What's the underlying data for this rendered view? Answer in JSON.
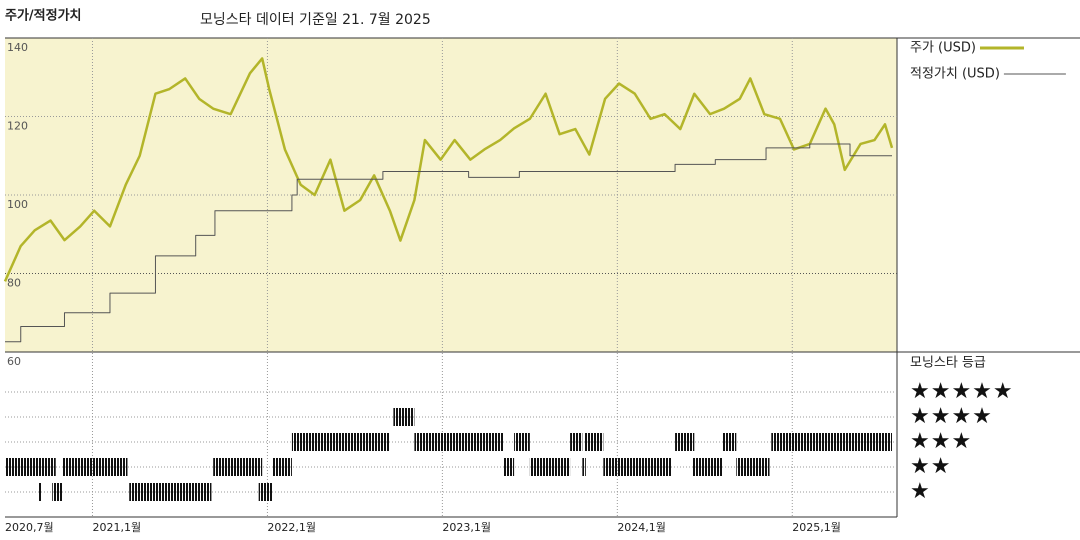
{
  "chart_data": {
    "type": "line",
    "title": "주가/적정가치",
    "subtitle": "모닝스타 데이터 기준일 21. 7월 2025",
    "xlim": [
      2020.5,
      2025.57
    ],
    "xticks": [
      {
        "value": 2020.5,
        "label": "2020,7월"
      },
      {
        "value": 2021.0,
        "label": "2021,1월"
      },
      {
        "value": 2022.0,
        "label": "2022,1월"
      },
      {
        "value": 2023.0,
        "label": "2023,1월"
      },
      {
        "value": 2024.0,
        "label": "2024,1월"
      },
      {
        "value": 2025.0,
        "label": "2025,1월"
      }
    ],
    "ylim": [
      60,
      140
    ],
    "yticks": [
      60,
      80,
      100,
      120,
      140
    ],
    "grid": true,
    "series": [
      {
        "name": "주가 (USD)",
        "color": "#b3b52a",
        "step": false,
        "x": [
          2020.5,
          2020.59,
          2020.67,
          2020.76,
          2020.84,
          2020.93,
          2021.01,
          2021.1,
          2021.19,
          2021.27,
          2021.36,
          2021.44,
          2021.53,
          2021.61,
          2021.69,
          2021.79,
          2021.9,
          2021.97,
          2022.01,
          2022.1,
          2022.19,
          2022.27,
          2022.36,
          2022.44,
          2022.53,
          2022.61,
          2022.7,
          2022.76,
          2022.84,
          2022.9,
          2022.99,
          2023.07,
          2023.16,
          2023.24,
          2023.33,
          2023.41,
          2023.5,
          2023.59,
          2023.67,
          2023.76,
          2023.84,
          2023.93,
          2024.01,
          2024.1,
          2024.19,
          2024.27,
          2024.36,
          2024.44,
          2024.53,
          2024.61,
          2024.7,
          2024.76,
          2024.84,
          2024.93,
          2025.01,
          2025.1,
          2025.19,
          2025.24,
          2025.3,
          2025.39,
          2025.47,
          2025.53,
          2025.57
        ],
        "values": [
          78,
          87,
          91,
          93.5,
          88.5,
          92,
          96,
          92,
          102.6,
          110,
          125.8,
          127,
          129.7,
          124.5,
          122,
          120.6,
          131,
          134.8,
          127,
          111.6,
          102.6,
          100,
          109,
          96,
          98.7,
          105,
          96,
          88.4,
          98.7,
          114,
          109,
          114,
          109,
          111.6,
          114,
          117,
          119.4,
          125.8,
          115.5,
          116.8,
          110.3,
          124.5,
          128.4,
          125.8,
          119.4,
          120.6,
          116.8,
          125.8,
          120.6,
          122,
          124.5,
          129.7,
          120.6,
          119.4,
          111.6,
          113,
          122,
          118,
          106.4,
          113,
          114,
          118,
          112
        ]
      },
      {
        "name": "적정가치 (USD)",
        "color": "#555555",
        "step": true,
        "x": [
          2020.5,
          2020.59,
          2020.84,
          2021.1,
          2021.36,
          2021.59,
          2021.7,
          2022.14,
          2022.17,
          2022.66,
          2023.15,
          2023.44,
          2024.33,
          2024.56,
          2024.85,
          2025.1,
          2025.33,
          2025.57
        ],
        "values": [
          62.6,
          66.5,
          70,
          75,
          84.5,
          89.7,
          96,
          100,
          104,
          106,
          104.5,
          106,
          107.8,
          109,
          112,
          113,
          110,
          110
        ]
      }
    ],
    "rating_title": "모닝스타 등급",
    "rating_labels": [
      "★",
      "★★",
      "★★★",
      "★★★★",
      "★★★★★"
    ],
    "rating_periods": [
      {
        "start": 2020.5,
        "end": 2020.79,
        "stars": 2
      },
      {
        "start": 2020.69,
        "end": 2020.71,
        "stars": 1
      },
      {
        "start": 2020.77,
        "end": 2020.83,
        "stars": 1
      },
      {
        "start": 2020.83,
        "end": 2021.2,
        "stars": 2
      },
      {
        "start": 2021.21,
        "end": 2021.68,
        "stars": 1
      },
      {
        "start": 2021.69,
        "end": 2021.97,
        "stars": 2
      },
      {
        "start": 2021.95,
        "end": 2022.03,
        "stars": 1
      },
      {
        "start": 2022.03,
        "end": 2022.14,
        "stars": 2
      },
      {
        "start": 2022.14,
        "end": 2022.7,
        "stars": 3
      },
      {
        "start": 2022.72,
        "end": 2022.84,
        "stars": 4
      },
      {
        "start": 2022.84,
        "end": 2023.35,
        "stars": 3
      },
      {
        "start": 2023.35,
        "end": 2023.41,
        "stars": 2
      },
      {
        "start": 2023.41,
        "end": 2023.5,
        "stars": 3
      },
      {
        "start": 2023.5,
        "end": 2023.73,
        "stars": 2
      },
      {
        "start": 2023.73,
        "end": 2023.8,
        "stars": 3
      },
      {
        "start": 2023.8,
        "end": 2023.82,
        "stars": 2
      },
      {
        "start": 2023.81,
        "end": 2023.92,
        "stars": 3
      },
      {
        "start": 2023.92,
        "end": 2024.31,
        "stars": 2
      },
      {
        "start": 2024.33,
        "end": 2024.44,
        "stars": 3
      },
      {
        "start": 2024.43,
        "end": 2024.6,
        "stars": 2
      },
      {
        "start": 2024.6,
        "end": 2024.68,
        "stars": 3
      },
      {
        "start": 2024.68,
        "end": 2024.87,
        "stars": 2
      },
      {
        "start": 2024.88,
        "end": 2025.57,
        "stars": 3
      }
    ]
  }
}
